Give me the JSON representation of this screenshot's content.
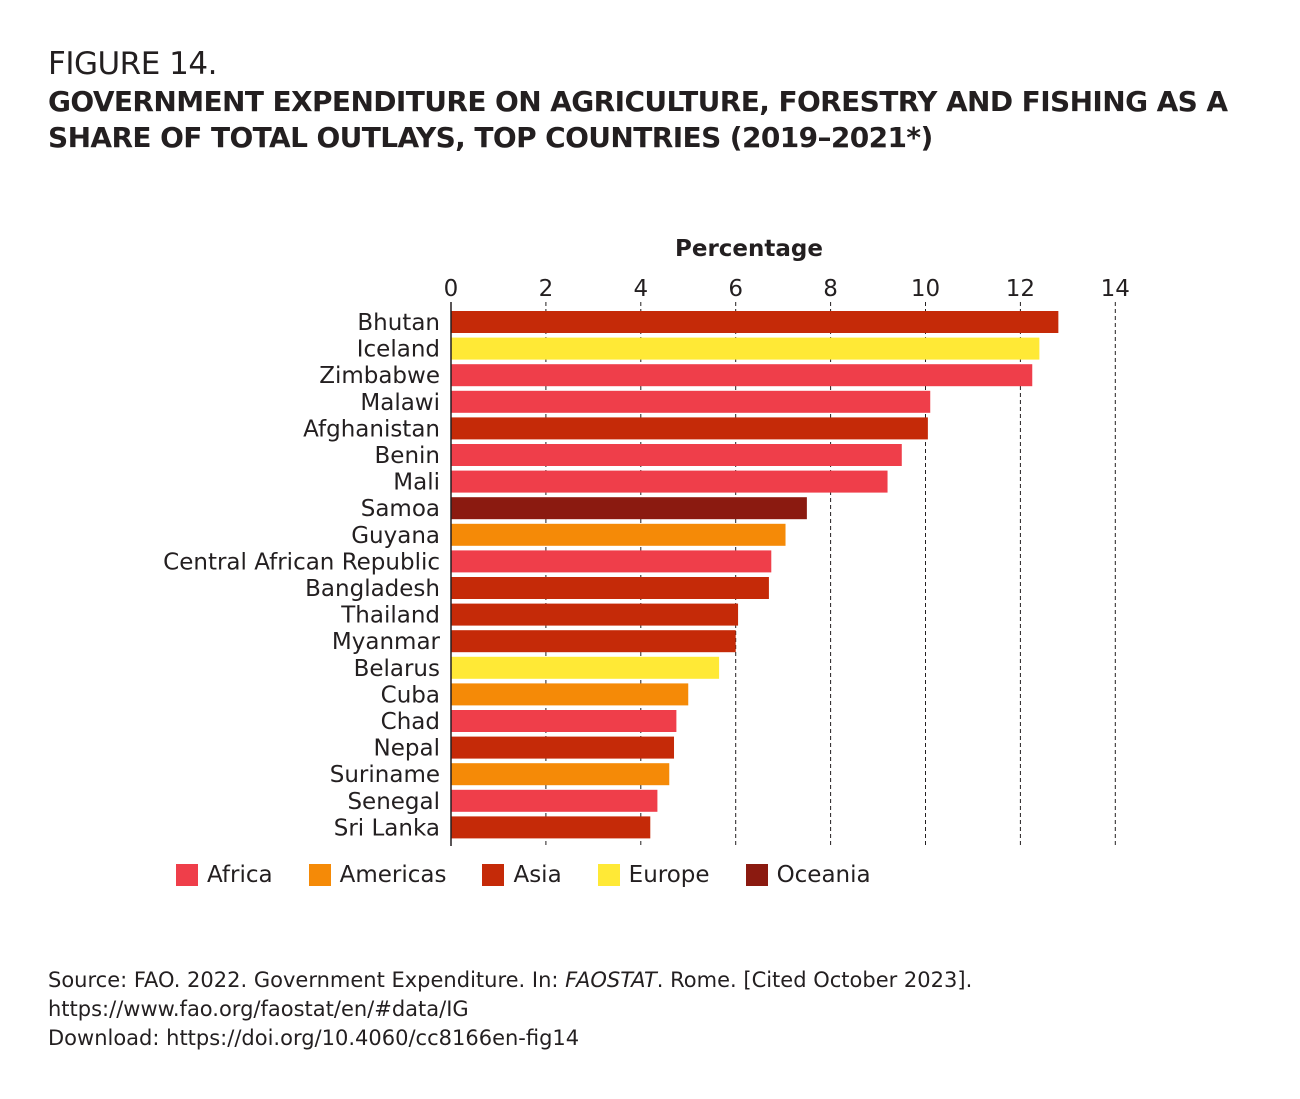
{
  "figure": {
    "label": "FIGURE 14.",
    "title": "GOVERNMENT EXPENDITURE ON AGRICULTURE, FORESTRY AND FISHING AS A SHARE OF TOTAL OUTLAYS, TOP COUNTRIES (2019–2021*)"
  },
  "colors": {
    "Africa": "#ef3e4a",
    "Americas": "#f58a07",
    "Asia": "#c52a08",
    "Europe": "#ffe936",
    "Oceania": "#8b1a10"
  },
  "chart_data": {
    "type": "bar",
    "orientation": "horizontal",
    "xlabel": "Percentage",
    "xlim": [
      0,
      14
    ],
    "xticks": [
      0,
      2,
      4,
      6,
      8,
      10,
      12,
      14
    ],
    "grid": "vertical dashed",
    "legend_position": "bottom-left",
    "categories": [
      "Bhutan",
      "Iceland",
      "Zimbabwe",
      "Malawi",
      "Afghanistan",
      "Benin",
      "Mali",
      "Samoa",
      "Guyana",
      "Central African Republic",
      "Bangladesh",
      "Thailand",
      "Myanmar",
      "Belarus",
      "Cuba",
      "Chad",
      "Nepal",
      "Suriname",
      "Senegal",
      "Sri Lanka"
    ],
    "values": [
      12.8,
      12.4,
      12.25,
      10.1,
      10.05,
      9.5,
      9.2,
      7.5,
      7.05,
      6.75,
      6.7,
      6.05,
      6.0,
      5.65,
      5.0,
      4.75,
      4.7,
      4.6,
      4.35,
      4.2
    ],
    "regions": [
      "Asia",
      "Europe",
      "Africa",
      "Africa",
      "Asia",
      "Africa",
      "Africa",
      "Oceania",
      "Americas",
      "Africa",
      "Asia",
      "Asia",
      "Asia",
      "Europe",
      "Americas",
      "Africa",
      "Asia",
      "Americas",
      "Africa",
      "Asia"
    ],
    "legend": [
      "Africa",
      "Americas",
      "Asia",
      "Europe",
      "Oceania"
    ]
  },
  "source": {
    "prefix": "Source: FAO. 2022. Government Expenditure. In: ",
    "publication": "FAOSTAT",
    "suffix": ". Rome. [Cited October 2023].",
    "url": "https://www.fao.org/faostat/en/#data/IG",
    "download": "Download: https://doi.org/10.4060/cc8166en-fig14"
  }
}
